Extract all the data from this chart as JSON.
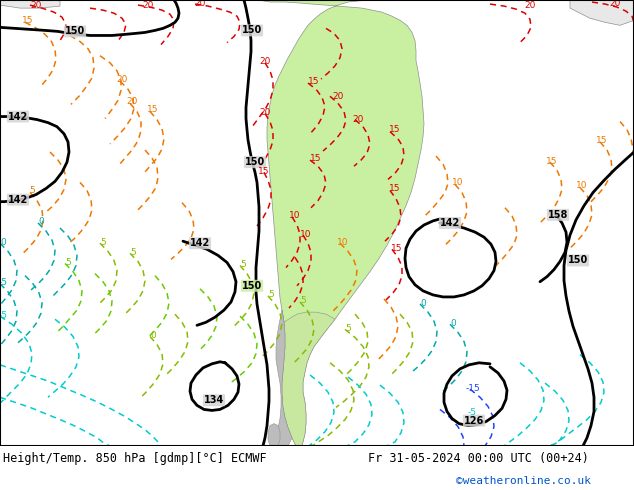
{
  "title_left": "Height/Temp. 850 hPa [gdmp][°C] ECMWF",
  "title_right": "Fr 31-05-2024 00:00 UTC (00+24)",
  "copyright": "©weatheronline.co.uk",
  "bg_color": "#d4d4d4",
  "ocean_color": "#d4d4d4",
  "land_color": "#e8e8e8",
  "sa_green_color": "#c8f0a0",
  "sa_gray_color": "#b0b0b0",
  "figsize": [
    6.34,
    4.9
  ],
  "dpi": 100,
  "title_fontsize": 9,
  "copyright_color": "#0055cc",
  "text_color": "#000000",
  "white": "#ffffff"
}
